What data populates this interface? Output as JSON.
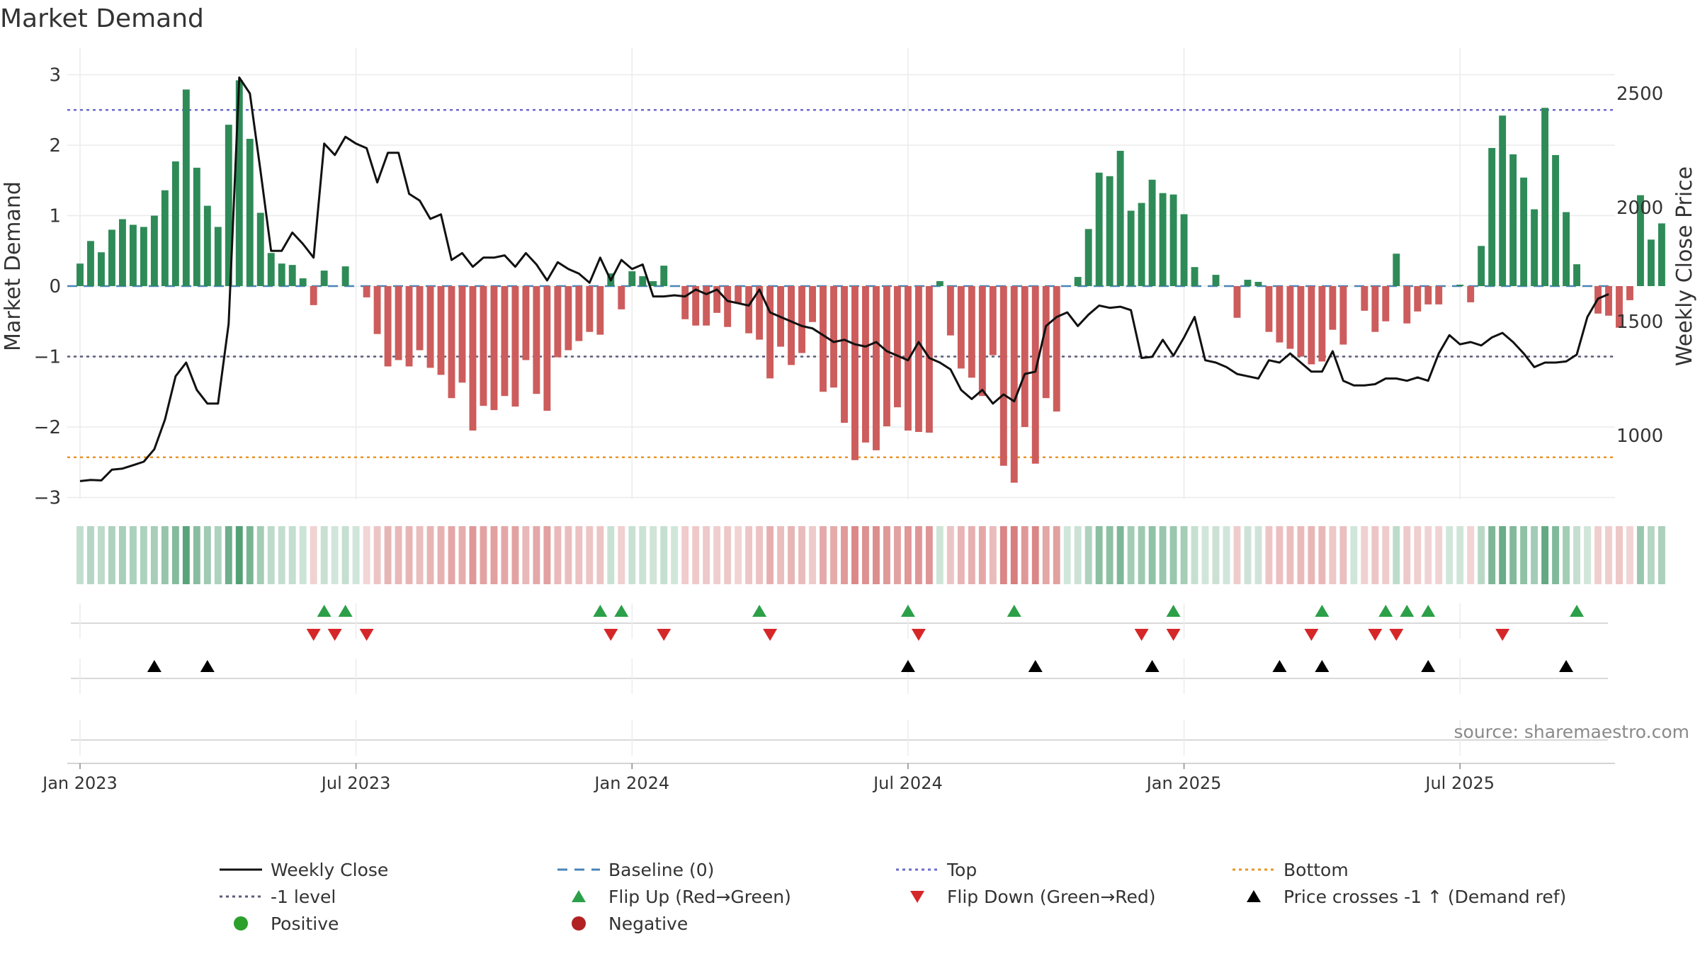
{
  "chart_data": {
    "type": "bar",
    "title": "Market Demand",
    "ylabel": "Market Demand",
    "y2label": "Weekly Close Price",
    "ylim": [
      -3.05,
      3.05
    ],
    "y2lim": [
      790,
      2620
    ],
    "yticks": [
      3,
      2,
      1,
      0,
      -1,
      -2,
      -3
    ],
    "ytick_labels": [
      "3",
      "2",
      "1",
      "0",
      "−1",
      "−2",
      "−3"
    ],
    "y2ticks": [
      2500,
      2000,
      1500,
      1000
    ],
    "y2tick_labels": [
      "2500",
      "2000",
      "1500",
      "1000"
    ],
    "x_weeks_range": [
      -1.2,
      144.6
    ],
    "xtick_weeks": [
      0,
      26,
      52,
      78,
      104,
      130
    ],
    "xtick_labels": [
      "Jan 2023",
      "Jul 2023",
      "Jan 2024",
      "Jul 2024",
      "Jan 2025",
      "Jul 2025"
    ],
    "levels": {
      "top": 2.5,
      "bottom": -2.43,
      "minus_one": -1.0,
      "baseline": 0
    },
    "demand": [
      0.32,
      0.64,
      0.48,
      0.8,
      0.95,
      0.87,
      0.84,
      1.0,
      1.36,
      1.77,
      2.79,
      1.68,
      1.14,
      0.84,
      2.29,
      2.92,
      2.09,
      1.04,
      0.47,
      0.32,
      0.3,
      0.11,
      -0.27,
      0.22,
      0.0,
      0.28,
      0.0,
      -0.16,
      -0.68,
      -1.14,
      -1.05,
      -1.14,
      -0.91,
      -1.16,
      -1.26,
      -1.59,
      -1.37,
      -2.05,
      -1.7,
      -1.76,
      -1.56,
      -1.71,
      -1.05,
      -1.53,
      -1.77,
      -1.01,
      -0.91,
      -0.78,
      -0.65,
      -0.69,
      0.18,
      -0.33,
      0.21,
      0.14,
      0.07,
      0.29,
      0.0,
      -0.47,
      -0.56,
      -0.56,
      -0.38,
      -0.58,
      -0.24,
      -0.67,
      -0.76,
      -1.31,
      -0.86,
      -1.12,
      -0.95,
      -0.51,
      -1.5,
      -1.44,
      -1.94,
      -2.47,
      -2.22,
      -2.33,
      -1.99,
      -1.72,
      -2.05,
      -2.07,
      -2.08,
      0.07,
      -0.7,
      -1.17,
      -1.3,
      -1.56,
      -0.98,
      -2.55,
      -2.79,
      -2.0,
      -2.52,
      -1.59,
      -1.78,
      0.0,
      0.13,
      0.81,
      1.61,
      1.56,
      1.92,
      1.07,
      1.18,
      1.51,
      1.32,
      1.3,
      1.02,
      0.27,
      0.0,
      0.16,
      0.0,
      -0.45,
      0.09,
      0.06,
      -0.65,
      -0.8,
      -0.89,
      -1.0,
      -1.11,
      -1.07,
      -0.62,
      -0.83,
      0.0,
      -0.35,
      -0.65,
      -0.5,
      0.46,
      -0.53,
      -0.36,
      -0.26,
      -0.26,
      0.0,
      0.02,
      -0.23,
      0.57,
      1.96,
      2.42,
      1.87,
      1.54,
      1.09,
      2.53,
      1.86,
      1.05,
      0.31,
      0.0,
      -0.39,
      -0.42,
      -0.59,
      -0.2,
      1.29,
      0.66,
      0.89
    ],
    "price": [
      800,
      805,
      803,
      850,
      855,
      870,
      885,
      940,
      1070,
      1260,
      1320,
      1200,
      1140,
      1140,
      1490,
      2570,
      2500,
      2160,
      1810,
      1810,
      1890,
      1840,
      1780,
      2280,
      2230,
      2310,
      2280,
      2260,
      2110,
      2240,
      2240,
      2060,
      2030,
      1950,
      1970,
      1770,
      1800,
      1740,
      1780,
      1780,
      1790,
      1740,
      1800,
      1750,
      1680,
      1760,
      1730,
      1710,
      1670,
      1780,
      1680,
      1770,
      1730,
      1750,
      1610,
      1610,
      1615,
      1610,
      1640,
      1620,
      1640,
      1590,
      1580,
      1570,
      1640,
      1540,
      1520,
      1500,
      1480,
      1470,
      1440,
      1410,
      1420,
      1400,
      1390,
      1410,
      1370,
      1350,
      1330,
      1410,
      1340,
      1320,
      1290,
      1200,
      1160,
      1200,
      1140,
      1180,
      1150,
      1270,
      1280,
      1480,
      1520,
      1540,
      1480,
      1530,
      1570,
      1560,
      1565,
      1550,
      1340,
      1345,
      1420,
      1350,
      1430,
      1520,
      1330,
      1320,
      1300,
      1270,
      1260,
      1250,
      1330,
      1320,
      1360,
      1320,
      1280,
      1280,
      1370,
      1240,
      1220,
      1220,
      1225,
      1250,
      1250,
      1240,
      1255,
      1240,
      1360,
      1440,
      1400,
      1410,
      1395,
      1430,
      1450,
      1410,
      1360,
      1300,
      1320,
      1320,
      1325,
      1355,
      1520,
      1600,
      1620
    ],
    "markers": {
      "flip_up_weeks": [
        23,
        25,
        49,
        51,
        64,
        78,
        88,
        103,
        117,
        123,
        125,
        127,
        141
      ],
      "flip_down_weeks": [
        22,
        24,
        27,
        50,
        55,
        65,
        79,
        100,
        103,
        116,
        122,
        124,
        134
      ],
      "price_cross_weeks": [
        7,
        12,
        78,
        90,
        101,
        113,
        117,
        127,
        140
      ]
    },
    "source": "source: sharemaestro.com",
    "legend": [
      "Weekly Close",
      "Baseline (0)",
      "Top",
      "Bottom",
      "-1 level",
      "Flip Up (Red→Green)",
      "Flip Down (Green→Red)",
      "Price crosses -1 ↑ (Demand ref)",
      "Positive",
      "Negative"
    ],
    "legend_position": "bottom",
    "colors": {
      "positive": "#2e8b57",
      "negative": "#cd5c5c",
      "price": "#111111",
      "baseline": "#4a84b6",
      "top": "#6b6bcf",
      "bottom": "#e8952a",
      "minus_one": "#5a5a78",
      "flip_up": "#2ca048",
      "flip_down": "#d62728",
      "price_cross": "#000000",
      "positive_dot": "#2ca02c",
      "negative_dot": "#b22222"
    }
  }
}
